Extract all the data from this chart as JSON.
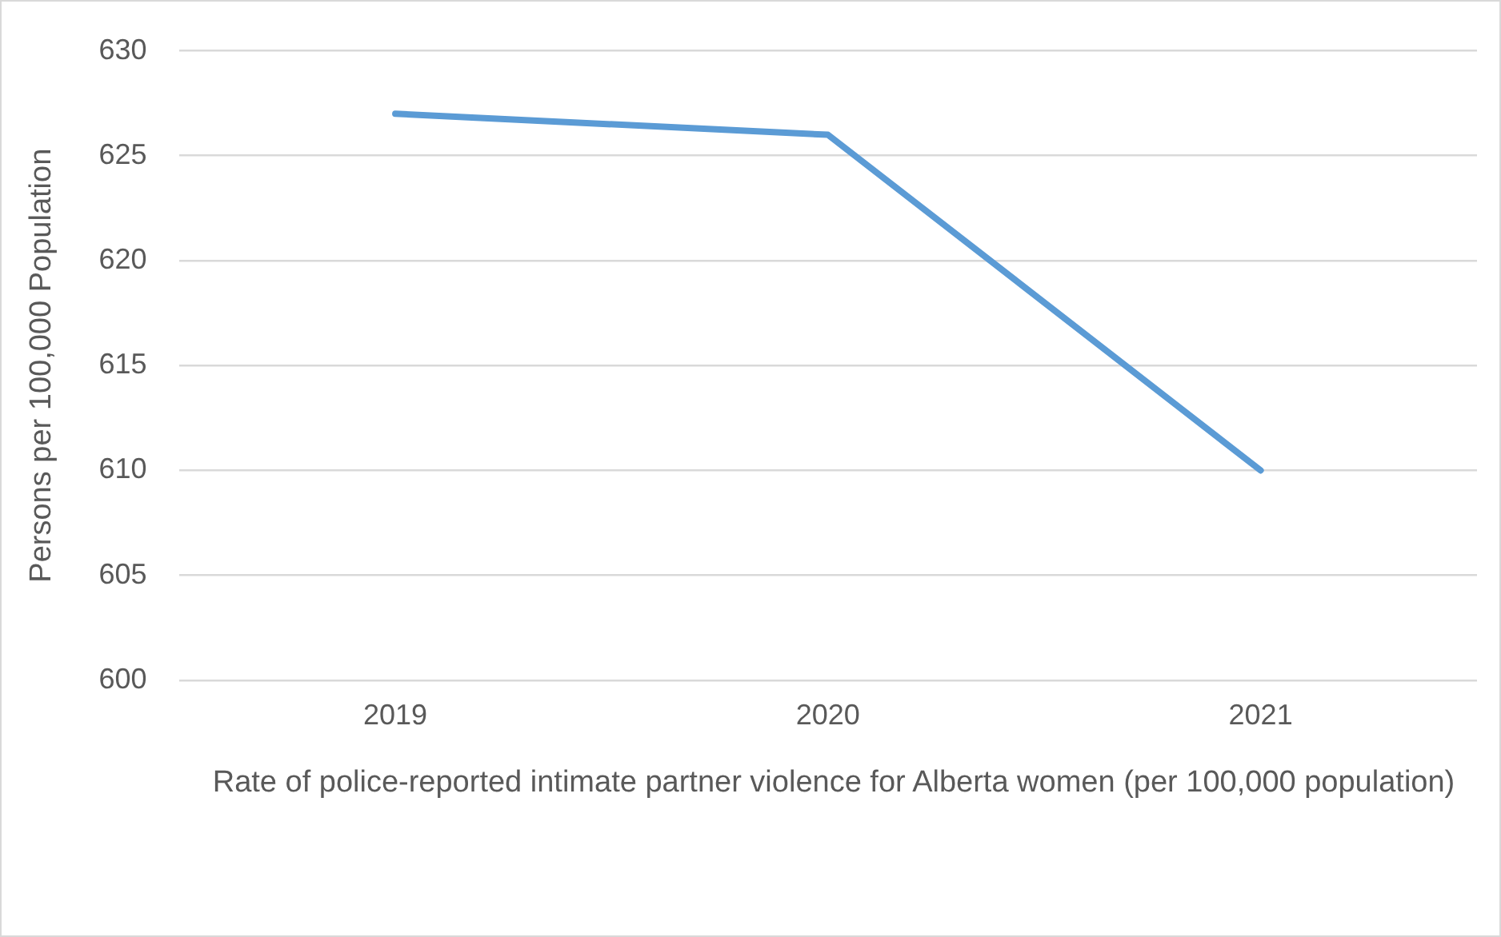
{
  "chart_data": {
    "type": "line",
    "xlabel": "Rate of police-reported intimate partner violence for Alberta women (per 100,000 population)",
    "ylabel": "Persons per 100,000 Population",
    "categories": [
      "2019",
      "2020",
      "2021"
    ],
    "series": [
      {
        "color": "#5b9bd5",
        "values": [
          627,
          626,
          610
        ]
      }
    ],
    "ylim": [
      600,
      630
    ],
    "yticks": [
      600,
      605,
      610,
      615,
      620,
      625,
      630
    ],
    "grid": "y",
    "legend": false,
    "marker": "none",
    "line_style": "solid"
  }
}
